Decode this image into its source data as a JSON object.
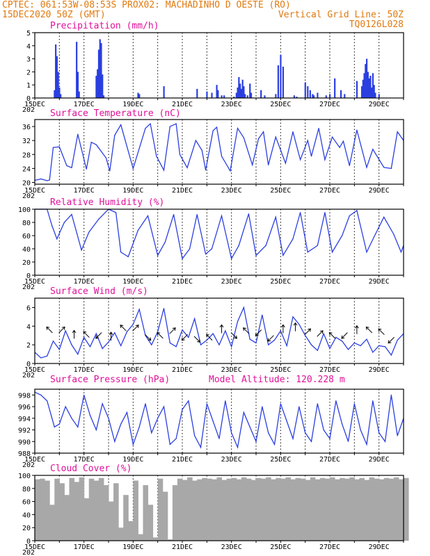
{
  "header": {
    "line1_left": "CPTEC:  061:53W-08:53S  PROX02: MACHADINHO D OESTE (RO)",
    "line2_left": "15DEC2020 50Z (GMT)",
    "line2_right": "Vertical Grid Line: 50Z",
    "line3_right": "TQ0126L028"
  },
  "x_axis": {
    "tick_labels": [
      "15DEC",
      "17DEC",
      "19DEC",
      "21DEC",
      "23DEC",
      "25DEC",
      "27DEC",
      "29DEC"
    ],
    "year_fragment": "202"
  },
  "colors": {
    "line": "#2b3fe0",
    "bar": "#2b3fe0",
    "cloud": "#a8a8a8",
    "header": "#e07a10",
    "title": "#e0109a"
  },
  "chart_data": [
    {
      "id": "precip",
      "type": "bar",
      "title": "Precipitation (mm/h)",
      "ylim": [
        0,
        5
      ],
      "yticks": [
        0,
        1,
        2,
        3,
        4,
        5
      ],
      "days_span": 15,
      "x": [
        0.8,
        0.85,
        0.9,
        0.95,
        1.0,
        1.05,
        1.7,
        1.75,
        1.8,
        2.5,
        2.55,
        2.6,
        2.65,
        2.7,
        2.75,
        2.8,
        4.2,
        4.25,
        5.25,
        6.6,
        7.0,
        7.2,
        7.4,
        7.45,
        7.6,
        7.7,
        8.1,
        8.2,
        8.25,
        8.3,
        8.35,
        8.4,
        8.45,
        8.5,
        8.55,
        8.65,
        8.75,
        8.8,
        9.2,
        9.35,
        9.8,
        9.9,
        10.0,
        10.1,
        10.55,
        10.65,
        11.0,
        11.1,
        11.2,
        11.3,
        11.35,
        11.5,
        11.85,
        12.0,
        12.2,
        12.45,
        12.6,
        13.1,
        13.3,
        13.35,
        13.4,
        13.45,
        13.5,
        13.55,
        13.6,
        13.65,
        13.7,
        13.75,
        13.8,
        13.85,
        14.0
      ],
      "values": [
        0.6,
        4.1,
        3.2,
        2.0,
        0.8,
        0.3,
        4.3,
        2.0,
        0.5,
        1.7,
        2.2,
        3.7,
        4.5,
        4.2,
        1.8,
        0.2,
        0.4,
        0.3,
        0.9,
        0.7,
        0.5,
        0.4,
        1.0,
        0.6,
        0.2,
        0.2,
        0.1,
        0.4,
        0.8,
        1.6,
        1.1,
        0.7,
        1.4,
        0.9,
        0.3,
        0.2,
        1.1,
        0.4,
        0.6,
        0.2,
        0.3,
        2.5,
        3.3,
        2.4,
        0.2,
        0.1,
        1.2,
        0.9,
        0.6,
        0.3,
        0.2,
        0.4,
        0.2,
        0.3,
        1.5,
        0.6,
        0.3,
        1.3,
        0.9,
        1.4,
        1.9,
        2.6,
        3.0,
        2.0,
        1.5,
        1.7,
        0.8,
        1.9,
        1.0,
        0.4,
        0.3
      ]
    },
    {
      "id": "temp",
      "type": "line",
      "title": "Surface Temperature (nC)",
      "ylim": [
        19.5,
        38
      ],
      "yticks": [
        20,
        24,
        28,
        32,
        36
      ],
      "days_span": 15,
      "x": [
        0,
        0.25,
        0.5,
        0.6,
        0.75,
        1.0,
        1.3,
        1.5,
        1.75,
        2.1,
        2.3,
        2.5,
        2.9,
        3.05,
        3.25,
        3.5,
        4.0,
        4.5,
        4.7,
        4.95,
        5.25,
        5.5,
        5.75,
        5.9,
        6.2,
        6.55,
        6.8,
        6.95,
        7.25,
        7.4,
        7.6,
        7.95,
        8.25,
        8.5,
        8.85,
        9.1,
        9.3,
        9.5,
        9.8,
        10.2,
        10.5,
        10.8,
        11.1,
        11.25,
        11.55,
        11.8,
        12.1,
        12.4,
        12.55,
        12.8,
        13.1,
        13.5,
        13.75,
        14.2,
        14.5,
        14.75,
        15.0
      ],
      "values": [
        20.6,
        21.0,
        20.5,
        20.7,
        30.0,
        30.2,
        24.8,
        24.2,
        33.8,
        23.8,
        31.5,
        30.8,
        27.0,
        23.3,
        33.5,
        36.5,
        24.0,
        35.5,
        36.8,
        27.5,
        23.5,
        36.0,
        36.8,
        28.0,
        24.2,
        32.0,
        29.2,
        23.5,
        34.8,
        35.8,
        27.5,
        23.3,
        35.5,
        32.8,
        25.0,
        32.5,
        34.5,
        25.0,
        33.0,
        25.5,
        34.5,
        26.5,
        32.0,
        27.5,
        35.5,
        26.5,
        33.0,
        30.0,
        31.8,
        24.8,
        35.0,
        24.3,
        29.5,
        24.3,
        24.0,
        34.5,
        32.0
      ]
    },
    {
      "id": "rh",
      "type": "line",
      "title": "Relative Humidity (%)",
      "ylim": [
        0,
        100
      ],
      "yticks": [
        0,
        20,
        40,
        60,
        80,
        100
      ],
      "days_span": 15,
      "x": [
        0,
        0.5,
        0.7,
        0.9,
        1.2,
        1.5,
        1.9,
        2.2,
        2.6,
        3.0,
        3.3,
        3.5,
        3.8,
        4.2,
        4.6,
        5.0,
        5.3,
        5.65,
        6.0,
        6.3,
        6.6,
        6.95,
        7.2,
        7.6,
        8.0,
        8.3,
        8.7,
        9.0,
        9.4,
        9.8,
        10.1,
        10.5,
        10.8,
        11.1,
        11.5,
        11.8,
        12.1,
        12.5,
        12.8,
        13.1,
        13.5,
        13.8,
        14.2,
        14.6,
        14.9,
        15.0
      ],
      "values": [
        100,
        100,
        75,
        55,
        80,
        92,
        38,
        65,
        85,
        100,
        95,
        35,
        28,
        68,
        90,
        30,
        50,
        92,
        25,
        40,
        92,
        32,
        40,
        90,
        25,
        45,
        93,
        30,
        45,
        88,
        30,
        55,
        95,
        35,
        45,
        95,
        35,
        60,
        90,
        98,
        35,
        58,
        88,
        62,
        35,
        45
      ]
    },
    {
      "id": "wind",
      "type": "line",
      "title": "Surface Wind (m/s)",
      "ylim": [
        0,
        7
      ],
      "yticks": [
        0,
        2,
        4,
        6
      ],
      "days_span": 15,
      "x": [
        0,
        0.25,
        0.5,
        0.75,
        1.0,
        1.25,
        1.5,
        1.75,
        2.0,
        2.25,
        2.5,
        2.75,
        3.0,
        3.25,
        3.5,
        3.75,
        4.0,
        4.25,
        4.5,
        4.75,
        5.0,
        5.25,
        5.5,
        5.75,
        6.0,
        6.25,
        6.5,
        6.75,
        7.0,
        7.25,
        7.5,
        7.75,
        8.0,
        8.25,
        8.5,
        8.75,
        9.0,
        9.25,
        9.5,
        9.75,
        10.0,
        10.25,
        10.5,
        10.75,
        11.0,
        11.25,
        11.5,
        11.75,
        12.0,
        12.25,
        12.5,
        12.75,
        13.0,
        13.25,
        13.5,
        13.75,
        14.0,
        14.25,
        14.5,
        14.75,
        15.0
      ],
      "values": [
        1.2,
        0.6,
        0.8,
        2.4,
        1.5,
        3.5,
        2.0,
        1.0,
        2.8,
        1.8,
        3.2,
        1.6,
        2.3,
        3.3,
        1.9,
        3.4,
        4.2,
        5.8,
        3.0,
        2.0,
        3.4,
        5.9,
        2.2,
        1.8,
        3.6,
        2.8,
        4.8,
        2.0,
        2.5,
        3.2,
        2.0,
        3.5,
        1.8,
        4.5,
        6.0,
        2.6,
        2.2,
        5.2,
        2.0,
        2.5,
        3.5,
        1.9,
        5.0,
        4.2,
        3.0,
        2.0,
        1.4,
        3.2,
        1.6,
        2.8,
        2.4,
        1.5,
        2.2,
        1.9,
        2.6,
        1.2,
        1.9,
        1.8,
        0.9,
        2.5,
        3.2
      ],
      "vector_arrows": [
        {
          "day": 0.6,
          "level": 3.6,
          "dir": "up-left"
        },
        {
          "day": 1.1,
          "level": 3.6,
          "dir": "up-right"
        },
        {
          "day": 1.6,
          "level": 3.1,
          "dir": "up"
        },
        {
          "day": 2.1,
          "level": 3.1,
          "dir": "up-left"
        },
        {
          "day": 2.6,
          "level": 3.0,
          "dir": "down-left"
        },
        {
          "day": 3.1,
          "level": 2.9,
          "dir": "up"
        },
        {
          "day": 3.6,
          "level": 3.8,
          "dir": "up-left"
        },
        {
          "day": 4.1,
          "level": 3.8,
          "dir": "up-right"
        },
        {
          "day": 4.6,
          "level": 2.8,
          "dir": "down-right"
        },
        {
          "day": 5.1,
          "level": 3.0,
          "dir": "up-left"
        },
        {
          "day": 5.6,
          "level": 3.5,
          "dir": "up-right"
        },
        {
          "day": 6.1,
          "level": 2.8,
          "dir": "down-left"
        },
        {
          "day": 6.6,
          "level": 2.6,
          "dir": "down-right"
        },
        {
          "day": 7.1,
          "level": 2.8,
          "dir": "up-left"
        },
        {
          "day": 7.6,
          "level": 3.7,
          "dir": "up"
        },
        {
          "day": 8.1,
          "level": 3.0,
          "dir": "down-right"
        },
        {
          "day": 8.6,
          "level": 3.5,
          "dir": "up-left"
        },
        {
          "day": 9.1,
          "level": 3.3,
          "dir": "down-left"
        },
        {
          "day": 9.6,
          "level": 2.7,
          "dir": "down-left"
        },
        {
          "day": 10.1,
          "level": 3.7,
          "dir": "up"
        },
        {
          "day": 10.6,
          "level": 3.9,
          "dir": "up"
        },
        {
          "day": 11.1,
          "level": 3.4,
          "dir": "up-right"
        },
        {
          "day": 11.6,
          "level": 3.2,
          "dir": "up-right"
        },
        {
          "day": 12.1,
          "level": 3.0,
          "dir": "up-left"
        },
        {
          "day": 12.6,
          "level": 3.0,
          "dir": "down-left"
        },
        {
          "day": 13.1,
          "level": 3.6,
          "dir": "up"
        },
        {
          "day": 13.6,
          "level": 3.6,
          "dir": "up-left"
        },
        {
          "day": 14.1,
          "level": 3.4,
          "dir": "up-left"
        },
        {
          "day": 14.5,
          "level": 2.5,
          "dir": "down-left"
        }
      ]
    },
    {
      "id": "pressure",
      "type": "line",
      "title": "Surface Pressure (hPa)",
      "subtitle": "Model Altitude: 120.228  m",
      "ylim": [
        988,
        999
      ],
      "yticks": [
        988,
        990,
        992,
        994,
        996,
        998
      ],
      "days_span": 15,
      "x": [
        0,
        0.25,
        0.5,
        0.8,
        1.0,
        1.25,
        1.5,
        1.75,
        2.0,
        2.25,
        2.5,
        2.75,
        3.0,
        3.25,
        3.5,
        3.75,
        4.0,
        4.25,
        4.5,
        4.75,
        5.0,
        5.25,
        5.5,
        5.75,
        6.0,
        6.25,
        6.5,
        6.75,
        7.0,
        7.25,
        7.5,
        7.75,
        8.0,
        8.25,
        8.5,
        8.75,
        9.0,
        9.25,
        9.5,
        9.75,
        10.0,
        10.25,
        10.5,
        10.75,
        11.0,
        11.25,
        11.5,
        11.75,
        12.0,
        12.25,
        12.5,
        12.75,
        13.0,
        13.25,
        13.5,
        13.75,
        14.0,
        14.25,
        14.5,
        14.75,
        15.0
      ],
      "values": [
        998.5,
        998.0,
        997.0,
        992.5,
        993.0,
        996.0,
        994.0,
        992.5,
        998.0,
        994.5,
        992.0,
        996.5,
        994.0,
        990.0,
        993.0,
        995.0,
        989.5,
        992.5,
        996.5,
        991.5,
        994.0,
        996.0,
        989.5,
        990.5,
        995.5,
        997.0,
        991.0,
        989.0,
        996.5,
        993.5,
        990.5,
        997.0,
        991.5,
        989.0,
        995.0,
        992.5,
        990.0,
        996.0,
        991.5,
        989.5,
        996.5,
        993.5,
        990.5,
        996.0,
        991.5,
        990.0,
        996.5,
        992.0,
        990.5,
        997.0,
        993.0,
        990.0,
        996.5,
        992.0,
        989.5,
        997.0,
        991.5,
        990.0,
        998.0,
        991.0,
        994.0
      ]
    },
    {
      "id": "cloud",
      "type": "area",
      "title": "Cloud Cover (%)",
      "ylim": [
        0,
        100
      ],
      "yticks": [
        0,
        20,
        40,
        60,
        80,
        100
      ],
      "days_span": 15,
      "x": [
        0,
        0.2,
        0.4,
        0.6,
        0.8,
        1.0,
        1.2,
        1.4,
        1.6,
        1.8,
        2.0,
        2.2,
        2.4,
        2.6,
        2.8,
        3.0,
        3.2,
        3.4,
        3.6,
        3.8,
        4.0,
        4.2,
        4.4,
        4.6,
        4.8,
        5.0,
        5.2,
        5.4,
        5.6,
        5.8,
        6.0,
        6.2,
        6.4,
        6.6,
        6.8,
        7.0,
        7.2,
        7.4,
        7.6,
        7.8,
        8.0,
        8.2,
        8.4,
        8.6,
        8.8,
        9.0,
        9.2,
        9.4,
        9.6,
        9.8,
        10.0,
        10.2,
        10.4,
        10.6,
        10.8,
        11.0,
        11.2,
        11.4,
        11.6,
        11.8,
        12.0,
        12.2,
        12.4,
        12.6,
        12.8,
        13.0,
        13.2,
        13.4,
        13.6,
        13.8,
        14.0,
        14.2,
        14.4,
        14.6,
        14.8,
        15.0
      ],
      "values": [
        94,
        95,
        92,
        55,
        95,
        88,
        70,
        96,
        90,
        97,
        65,
        95,
        92,
        96,
        85,
        60,
        88,
        20,
        70,
        30,
        92,
        10,
        85,
        55,
        5,
        95,
        75,
        2,
        85,
        95,
        93,
        97,
        92,
        94,
        96,
        95,
        94,
        97,
        93,
        95,
        96,
        94,
        97,
        95,
        93,
        96,
        95,
        97,
        94,
        96,
        95,
        97,
        94,
        96,
        95,
        93,
        97,
        94,
        96,
        95,
        97,
        94,
        96,
        95,
        97,
        94,
        96,
        93,
        97,
        95,
        94,
        96,
        95,
        97,
        94,
        96
      ]
    }
  ]
}
